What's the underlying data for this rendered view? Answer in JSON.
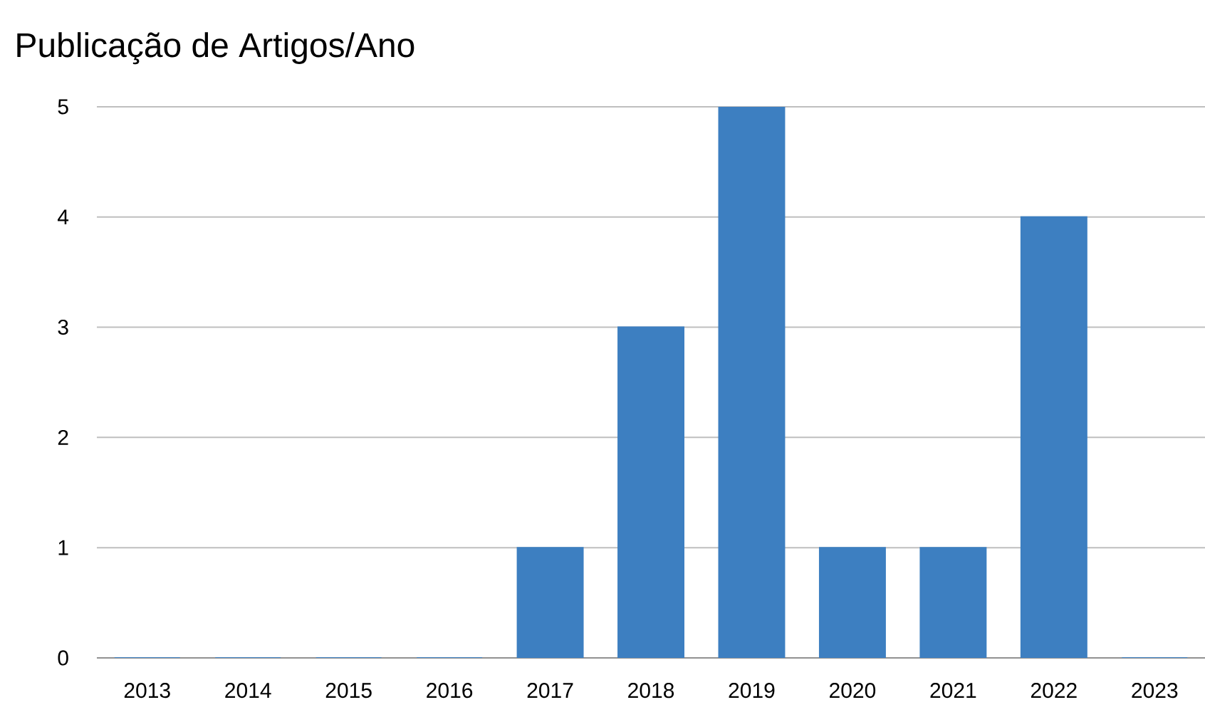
{
  "chart_data": {
    "type": "bar",
    "title": "Publicação de Artigos/Ano",
    "categories": [
      "2013",
      "2014",
      "2015",
      "2016",
      "2017",
      "2018",
      "2019",
      "2020",
      "2021",
      "2022",
      "2023"
    ],
    "values": [
      0,
      0,
      0,
      0,
      1,
      3,
      5,
      1,
      1,
      4,
      0
    ],
    "color": "#3d7fc1",
    "ylim": [
      0,
      5
    ],
    "yticks": [
      0,
      1,
      2,
      3,
      4,
      5
    ],
    "grid": "y"
  }
}
